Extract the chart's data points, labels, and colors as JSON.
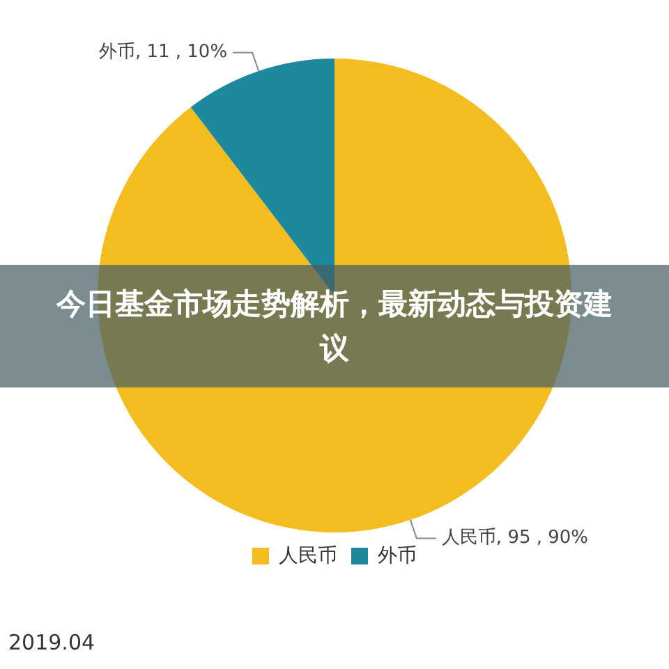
{
  "chart_data": {
    "type": "pie",
    "title": "今日基金市场走势解析，最新动态与投资建议",
    "categories": [
      "人民币",
      "外币"
    ],
    "values": [
      95,
      11
    ],
    "colors": [
      "#f3bd1f",
      "#1c8a9c"
    ],
    "value_labels": [
      "人民币, 95 , 90%",
      "外币, 11 , 10%"
    ],
    "legend": "bottom",
    "annotations": [
      "2019.04"
    ]
  }
}
